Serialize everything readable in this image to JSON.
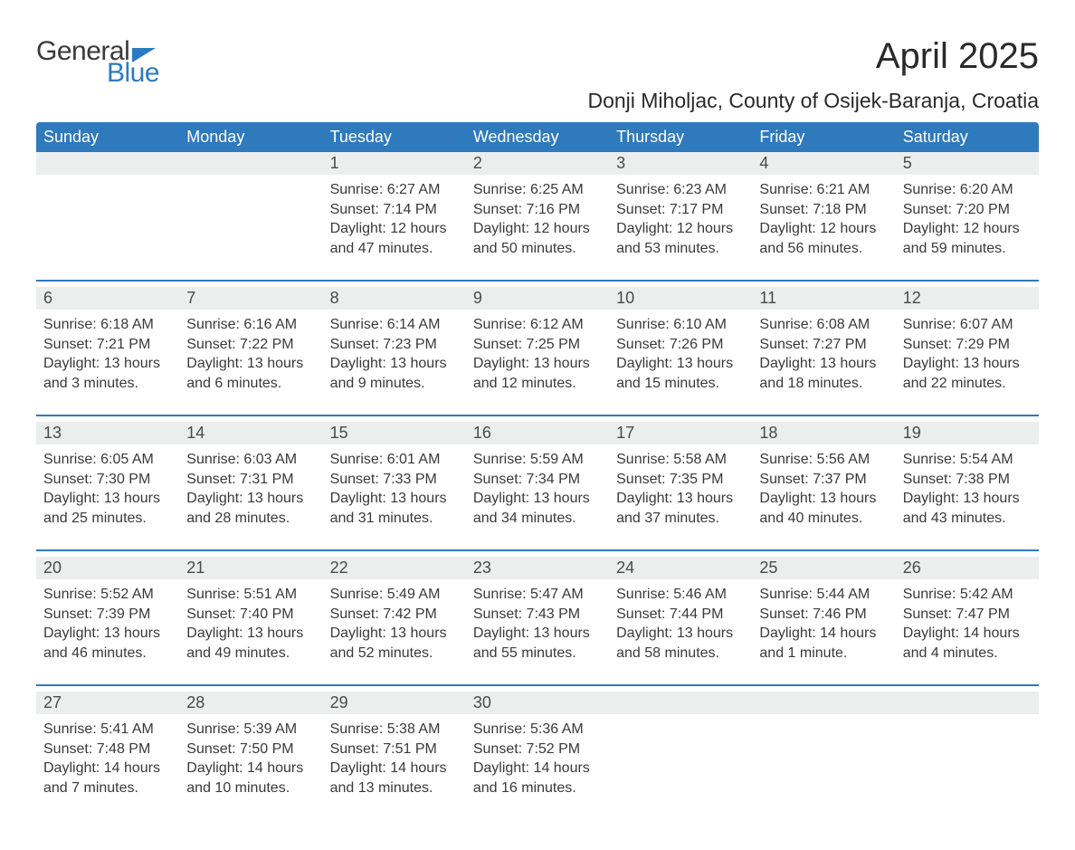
{
  "logo": {
    "part1": "General",
    "part2": "Blue"
  },
  "title": "April 2025",
  "subtitle": "Donji Miholjac, County of Osijek-Baranja, Croatia",
  "colors": {
    "header_bg": "#2f79bd",
    "header_text": "#ffffff",
    "daynum_bg": "#eceeee",
    "text": "#3a3a3a",
    "rule": "#2f79bd",
    "page_bg": "#ffffff",
    "logo_blue": "#2b7ac2",
    "logo_gray": "#3a3a3a"
  },
  "typography": {
    "title_fontsize": 40,
    "subtitle_fontsize": 23,
    "header_fontsize": 18,
    "daynum_fontsize": 18,
    "body_fontsize": 16,
    "font_family": "Arial"
  },
  "weekday_headers": [
    "Sunday",
    "Monday",
    "Tuesday",
    "Wednesday",
    "Thursday",
    "Friday",
    "Saturday"
  ],
  "weeks": [
    {
      "days": [
        null,
        null,
        {
          "num": "1",
          "sunrise": "Sunrise: 6:27 AM",
          "sunset": "Sunset: 7:14 PM",
          "daylight1": "Daylight: 12 hours",
          "daylight2": "and 47 minutes."
        },
        {
          "num": "2",
          "sunrise": "Sunrise: 6:25 AM",
          "sunset": "Sunset: 7:16 PM",
          "daylight1": "Daylight: 12 hours",
          "daylight2": "and 50 minutes."
        },
        {
          "num": "3",
          "sunrise": "Sunrise: 6:23 AM",
          "sunset": "Sunset: 7:17 PM",
          "daylight1": "Daylight: 12 hours",
          "daylight2": "and 53 minutes."
        },
        {
          "num": "4",
          "sunrise": "Sunrise: 6:21 AM",
          "sunset": "Sunset: 7:18 PM",
          "daylight1": "Daylight: 12 hours",
          "daylight2": "and 56 minutes."
        },
        {
          "num": "5",
          "sunrise": "Sunrise: 6:20 AM",
          "sunset": "Sunset: 7:20 PM",
          "daylight1": "Daylight: 12 hours",
          "daylight2": "and 59 minutes."
        }
      ]
    },
    {
      "days": [
        {
          "num": "6",
          "sunrise": "Sunrise: 6:18 AM",
          "sunset": "Sunset: 7:21 PM",
          "daylight1": "Daylight: 13 hours",
          "daylight2": "and 3 minutes."
        },
        {
          "num": "7",
          "sunrise": "Sunrise: 6:16 AM",
          "sunset": "Sunset: 7:22 PM",
          "daylight1": "Daylight: 13 hours",
          "daylight2": "and 6 minutes."
        },
        {
          "num": "8",
          "sunrise": "Sunrise: 6:14 AM",
          "sunset": "Sunset: 7:23 PM",
          "daylight1": "Daylight: 13 hours",
          "daylight2": "and 9 minutes."
        },
        {
          "num": "9",
          "sunrise": "Sunrise: 6:12 AM",
          "sunset": "Sunset: 7:25 PM",
          "daylight1": "Daylight: 13 hours",
          "daylight2": "and 12 minutes."
        },
        {
          "num": "10",
          "sunrise": "Sunrise: 6:10 AM",
          "sunset": "Sunset: 7:26 PM",
          "daylight1": "Daylight: 13 hours",
          "daylight2": "and 15 minutes."
        },
        {
          "num": "11",
          "sunrise": "Sunrise: 6:08 AM",
          "sunset": "Sunset: 7:27 PM",
          "daylight1": "Daylight: 13 hours",
          "daylight2": "and 18 minutes."
        },
        {
          "num": "12",
          "sunrise": "Sunrise: 6:07 AM",
          "sunset": "Sunset: 7:29 PM",
          "daylight1": "Daylight: 13 hours",
          "daylight2": "and 22 minutes."
        }
      ]
    },
    {
      "days": [
        {
          "num": "13",
          "sunrise": "Sunrise: 6:05 AM",
          "sunset": "Sunset: 7:30 PM",
          "daylight1": "Daylight: 13 hours",
          "daylight2": "and 25 minutes."
        },
        {
          "num": "14",
          "sunrise": "Sunrise: 6:03 AM",
          "sunset": "Sunset: 7:31 PM",
          "daylight1": "Daylight: 13 hours",
          "daylight2": "and 28 minutes."
        },
        {
          "num": "15",
          "sunrise": "Sunrise: 6:01 AM",
          "sunset": "Sunset: 7:33 PM",
          "daylight1": "Daylight: 13 hours",
          "daylight2": "and 31 minutes."
        },
        {
          "num": "16",
          "sunrise": "Sunrise: 5:59 AM",
          "sunset": "Sunset: 7:34 PM",
          "daylight1": "Daylight: 13 hours",
          "daylight2": "and 34 minutes."
        },
        {
          "num": "17",
          "sunrise": "Sunrise: 5:58 AM",
          "sunset": "Sunset: 7:35 PM",
          "daylight1": "Daylight: 13 hours",
          "daylight2": "and 37 minutes."
        },
        {
          "num": "18",
          "sunrise": "Sunrise: 5:56 AM",
          "sunset": "Sunset: 7:37 PM",
          "daylight1": "Daylight: 13 hours",
          "daylight2": "and 40 minutes."
        },
        {
          "num": "19",
          "sunrise": "Sunrise: 5:54 AM",
          "sunset": "Sunset: 7:38 PM",
          "daylight1": "Daylight: 13 hours",
          "daylight2": "and 43 minutes."
        }
      ]
    },
    {
      "days": [
        {
          "num": "20",
          "sunrise": "Sunrise: 5:52 AM",
          "sunset": "Sunset: 7:39 PM",
          "daylight1": "Daylight: 13 hours",
          "daylight2": "and 46 minutes."
        },
        {
          "num": "21",
          "sunrise": "Sunrise: 5:51 AM",
          "sunset": "Sunset: 7:40 PM",
          "daylight1": "Daylight: 13 hours",
          "daylight2": "and 49 minutes."
        },
        {
          "num": "22",
          "sunrise": "Sunrise: 5:49 AM",
          "sunset": "Sunset: 7:42 PM",
          "daylight1": "Daylight: 13 hours",
          "daylight2": "and 52 minutes."
        },
        {
          "num": "23",
          "sunrise": "Sunrise: 5:47 AM",
          "sunset": "Sunset: 7:43 PM",
          "daylight1": "Daylight: 13 hours",
          "daylight2": "and 55 minutes."
        },
        {
          "num": "24",
          "sunrise": "Sunrise: 5:46 AM",
          "sunset": "Sunset: 7:44 PM",
          "daylight1": "Daylight: 13 hours",
          "daylight2": "and 58 minutes."
        },
        {
          "num": "25",
          "sunrise": "Sunrise: 5:44 AM",
          "sunset": "Sunset: 7:46 PM",
          "daylight1": "Daylight: 14 hours",
          "daylight2": "and 1 minute."
        },
        {
          "num": "26",
          "sunrise": "Sunrise: 5:42 AM",
          "sunset": "Sunset: 7:47 PM",
          "daylight1": "Daylight: 14 hours",
          "daylight2": "and 4 minutes."
        }
      ]
    },
    {
      "days": [
        {
          "num": "27",
          "sunrise": "Sunrise: 5:41 AM",
          "sunset": "Sunset: 7:48 PM",
          "daylight1": "Daylight: 14 hours",
          "daylight2": "and 7 minutes."
        },
        {
          "num": "28",
          "sunrise": "Sunrise: 5:39 AM",
          "sunset": "Sunset: 7:50 PM",
          "daylight1": "Daylight: 14 hours",
          "daylight2": "and 10 minutes."
        },
        {
          "num": "29",
          "sunrise": "Sunrise: 5:38 AM",
          "sunset": "Sunset: 7:51 PM",
          "daylight1": "Daylight: 14 hours",
          "daylight2": "and 13 minutes."
        },
        {
          "num": "30",
          "sunrise": "Sunrise: 5:36 AM",
          "sunset": "Sunset: 7:52 PM",
          "daylight1": "Daylight: 14 hours",
          "daylight2": "and 16 minutes."
        },
        null,
        null,
        null
      ]
    }
  ]
}
